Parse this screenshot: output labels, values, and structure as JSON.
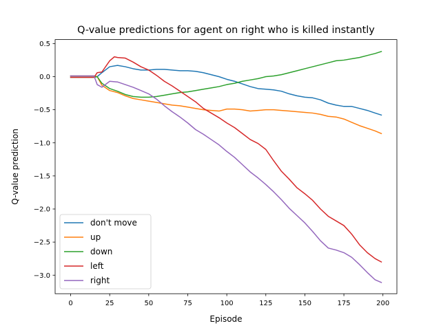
{
  "chart_data": {
    "type": "line",
    "title": "Q-value predictions for agent on right who is killed instantly",
    "xlabel": "Episode",
    "ylabel": "Q-value prediction",
    "xlim": [
      -9.95,
      208.95
    ],
    "ylim": [
      -3.28,
      0.56
    ],
    "xticks": [
      0,
      25,
      50,
      75,
      100,
      125,
      150,
      175,
      200
    ],
    "yticks": [
      0.5,
      0.0,
      -0.5,
      -1.0,
      -1.5,
      -2.0,
      -2.5,
      -3.0
    ],
    "ytick_labels": [
      "0.5",
      "0.0",
      "−0.5",
      "−1.0",
      "−1.5",
      "−2.0",
      "−2.5",
      "−3.0"
    ],
    "grid": false,
    "legend_position": "lower left",
    "series": [
      {
        "name": "don't move",
        "color": "#1f77b4",
        "x": [
          0,
          15,
          17,
          20,
          25,
          30,
          35,
          40,
          45,
          50,
          55,
          60,
          65,
          70,
          75,
          80,
          85,
          90,
          95,
          100,
          105,
          110,
          115,
          120,
          125,
          130,
          135,
          140,
          145,
          150,
          155,
          160,
          165,
          170,
          175,
          180,
          185,
          190,
          195,
          199
        ],
        "y": [
          0.01,
          0.01,
          0.0,
          0.06,
          0.15,
          0.17,
          0.15,
          0.12,
          0.1,
          0.1,
          0.11,
          0.11,
          0.1,
          0.09,
          0.09,
          0.08,
          0.06,
          0.03,
          0.0,
          -0.04,
          -0.07,
          -0.11,
          -0.15,
          -0.18,
          -0.19,
          -0.2,
          -0.22,
          -0.26,
          -0.29,
          -0.31,
          -0.32,
          -0.35,
          -0.4,
          -0.43,
          -0.45,
          -0.45,
          -0.48,
          -0.51,
          -0.55,
          -0.58
        ]
      },
      {
        "name": "up",
        "color": "#ff7f0e",
        "x": [
          0,
          15,
          17,
          20,
          25,
          30,
          35,
          40,
          45,
          50,
          55,
          60,
          65,
          70,
          75,
          80,
          85,
          90,
          95,
          100,
          105,
          110,
          115,
          120,
          125,
          130,
          135,
          140,
          145,
          150,
          155,
          160,
          165,
          170,
          175,
          180,
          185,
          190,
          195,
          199
        ],
        "y": [
          0.01,
          0.01,
          0.0,
          -0.13,
          -0.21,
          -0.24,
          -0.29,
          -0.33,
          -0.35,
          -0.37,
          -0.39,
          -0.41,
          -0.43,
          -0.44,
          -0.46,
          -0.48,
          -0.5,
          -0.51,
          -0.52,
          -0.49,
          -0.49,
          -0.5,
          -0.52,
          -0.51,
          -0.5,
          -0.5,
          -0.51,
          -0.52,
          -0.53,
          -0.54,
          -0.55,
          -0.57,
          -0.6,
          -0.61,
          -0.64,
          -0.69,
          -0.74,
          -0.78,
          -0.82,
          -0.86
        ]
      },
      {
        "name": "down",
        "color": "#2ca02c",
        "x": [
          0,
          15,
          17,
          20,
          25,
          30,
          35,
          40,
          45,
          50,
          55,
          60,
          65,
          70,
          75,
          80,
          85,
          90,
          95,
          100,
          105,
          110,
          115,
          120,
          125,
          130,
          135,
          140,
          145,
          150,
          155,
          160,
          165,
          170,
          175,
          180,
          185,
          190,
          195,
          199
        ],
        "y": [
          -0.01,
          -0.01,
          0.0,
          -0.1,
          -0.18,
          -0.22,
          -0.27,
          -0.3,
          -0.31,
          -0.31,
          -0.3,
          -0.28,
          -0.26,
          -0.24,
          -0.23,
          -0.21,
          -0.19,
          -0.17,
          -0.15,
          -0.12,
          -0.1,
          -0.07,
          -0.05,
          -0.03,
          0.0,
          0.01,
          0.03,
          0.06,
          0.09,
          0.12,
          0.15,
          0.18,
          0.21,
          0.24,
          0.25,
          0.27,
          0.29,
          0.32,
          0.35,
          0.38
        ]
      },
      {
        "name": "left",
        "color": "#d62728",
        "x": [
          0,
          15,
          17,
          20,
          25,
          28,
          30,
          35,
          40,
          45,
          50,
          55,
          60,
          65,
          70,
          75,
          80,
          85,
          90,
          95,
          100,
          105,
          110,
          115,
          120,
          125,
          130,
          135,
          140,
          145,
          150,
          155,
          160,
          165,
          170,
          175,
          180,
          185,
          190,
          195,
          199
        ],
        "y": [
          -0.01,
          -0.01,
          0.06,
          0.07,
          0.24,
          0.3,
          0.29,
          0.28,
          0.22,
          0.15,
          0.1,
          0.02,
          -0.07,
          -0.14,
          -0.22,
          -0.3,
          -0.38,
          -0.48,
          -0.55,
          -0.62,
          -0.7,
          -0.77,
          -0.86,
          -0.95,
          -1.01,
          -1.1,
          -1.27,
          -1.43,
          -1.55,
          -1.68,
          -1.77,
          -1.87,
          -2.0,
          -2.11,
          -2.18,
          -2.25,
          -2.38,
          -2.54,
          -2.66,
          -2.75,
          -2.8
        ]
      },
      {
        "name": "right",
        "color": "#9467bd",
        "x": [
          0,
          15,
          17,
          20,
          25,
          30,
          35,
          40,
          45,
          50,
          55,
          60,
          65,
          70,
          75,
          80,
          85,
          90,
          95,
          100,
          105,
          110,
          115,
          120,
          125,
          130,
          135,
          140,
          145,
          150,
          155,
          160,
          165,
          170,
          175,
          180,
          185,
          190,
          195,
          199
        ],
        "y": [
          0.01,
          0.01,
          -0.12,
          -0.16,
          -0.07,
          -0.08,
          -0.12,
          -0.16,
          -0.21,
          -0.26,
          -0.34,
          -0.44,
          -0.53,
          -0.61,
          -0.7,
          -0.8,
          -0.87,
          -0.95,
          -1.03,
          -1.13,
          -1.22,
          -1.33,
          -1.44,
          -1.53,
          -1.63,
          -1.74,
          -1.86,
          -1.99,
          -2.1,
          -2.21,
          -2.34,
          -2.48,
          -2.59,
          -2.62,
          -2.66,
          -2.73,
          -2.84,
          -2.96,
          -3.07,
          -3.11
        ]
      }
    ]
  }
}
